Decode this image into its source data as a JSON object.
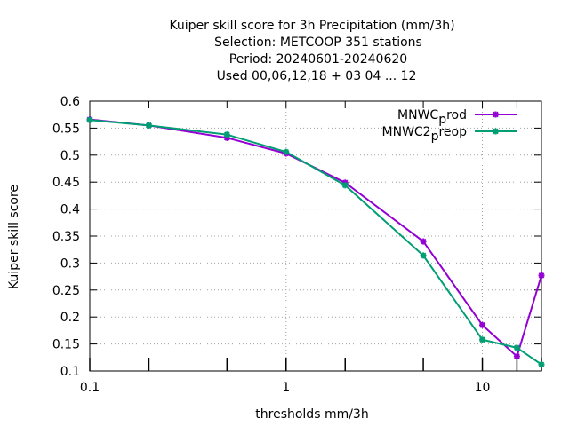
{
  "chart_data": {
    "type": "line",
    "title_lines": [
      "Kuiper skill score  for 3h Precipitation (mm/3h)",
      "Selection: METCOOP    351 stations",
      "Period: 20240601-20240620",
      "Used  00,06,12,18 + 03 04 ... 12"
    ],
    "xlabel": "thresholds mm/3h",
    "ylabel": "Kuiper skill score",
    "xscale": "log",
    "xlim": [
      0.1,
      20
    ],
    "ylim": [
      0.1,
      0.6
    ],
    "x_ticks": [
      0.1,
      0.2,
      0.5,
      1,
      2,
      5,
      10,
      15,
      20
    ],
    "x_tick_labels": [
      {
        "value": 0.1,
        "label": "0.1"
      },
      {
        "value": 1,
        "label": "1"
      },
      {
        "value": 10,
        "label": "10"
      }
    ],
    "y_ticks": [
      {
        "value": 0.1,
        "label": "0.1"
      },
      {
        "value": 0.15,
        "label": "0.15"
      },
      {
        "value": 0.2,
        "label": "0.2"
      },
      {
        "value": 0.25,
        "label": "0.25"
      },
      {
        "value": 0.3,
        "label": "0.3"
      },
      {
        "value": 0.35,
        "label": "0.35"
      },
      {
        "value": 0.4,
        "label": "0.4"
      },
      {
        "value": 0.45,
        "label": "0.45"
      },
      {
        "value": 0.5,
        "label": "0.5"
      },
      {
        "value": 0.55,
        "label": "0.55"
      },
      {
        "value": 0.6,
        "label": "0.6"
      }
    ],
    "grid": true,
    "legend_position": "top-right",
    "series": [
      {
        "name_base": "MNWC",
        "name_sub": "p",
        "name_tail": "rod",
        "color": "#9400d3",
        "x": [
          0.1,
          0.2,
          0.5,
          1,
          2,
          5,
          10,
          15,
          20
        ],
        "y": [
          0.566,
          0.555,
          0.532,
          0.503,
          0.449,
          0.34,
          0.185,
          0.127,
          0.277
        ]
      },
      {
        "name_base": "MNWC2",
        "name_sub": "p",
        "name_tail": "reop",
        "color": "#009e73",
        "x": [
          0.1,
          0.2,
          0.5,
          1,
          2,
          5,
          10,
          15,
          20
        ],
        "y": [
          0.565,
          0.555,
          0.538,
          0.506,
          0.444,
          0.314,
          0.158,
          0.143,
          0.112
        ]
      }
    ]
  }
}
